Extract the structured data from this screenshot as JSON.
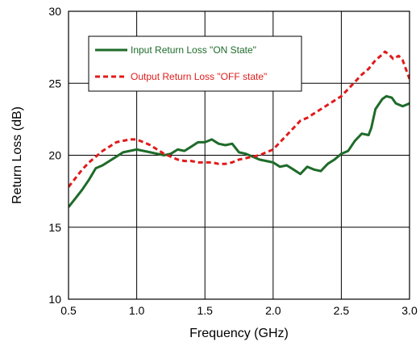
{
  "chart_data": {
    "type": "line",
    "title": "",
    "xlabel": "Frequency (GHz)",
    "ylabel": "Return Loss (dB)",
    "xlim": [
      0.5,
      3.0
    ],
    "ylim": [
      10,
      30
    ],
    "xticks": [
      "0.5",
      "1.0",
      "1.5",
      "2.0",
      "2.5",
      "3.0"
    ],
    "yticks": [
      "10",
      "15",
      "20",
      "25",
      "30"
    ],
    "grid": true,
    "legend": "top-left, inside plot, boxed",
    "series": [
      {
        "name": "Input Return Loss \"ON State\"",
        "color": "#1e6b2a",
        "style": "solid",
        "x": [
          0.5,
          0.55,
          0.6,
          0.65,
          0.7,
          0.75,
          0.8,
          0.85,
          0.9,
          0.95,
          1.0,
          1.05,
          1.1,
          1.15,
          1.2,
          1.25,
          1.3,
          1.35,
          1.4,
          1.45,
          1.5,
          1.55,
          1.6,
          1.65,
          1.7,
          1.75,
          1.8,
          1.85,
          1.9,
          1.95,
          2.0,
          2.05,
          2.1,
          2.15,
          2.2,
          2.25,
          2.3,
          2.35,
          2.4,
          2.45,
          2.5,
          2.55,
          2.6,
          2.65,
          2.7,
          2.72,
          2.75,
          2.8,
          2.83,
          2.87,
          2.9,
          2.95,
          3.0
        ],
        "y": [
          16.4,
          17.0,
          17.6,
          18.3,
          19.1,
          19.3,
          19.6,
          19.9,
          20.2,
          20.3,
          20.4,
          20.3,
          20.2,
          20.1,
          20.0,
          20.1,
          20.4,
          20.3,
          20.6,
          20.9,
          20.9,
          21.1,
          20.8,
          20.7,
          20.8,
          20.2,
          20.1,
          19.9,
          19.7,
          19.6,
          19.5,
          19.2,
          19.3,
          19.0,
          18.7,
          19.2,
          19.0,
          18.9,
          19.4,
          19.7,
          20.1,
          20.3,
          21.0,
          21.5,
          21.4,
          21.9,
          23.2,
          23.9,
          24.1,
          24.0,
          23.6,
          23.4,
          23.6
        ]
      },
      {
        "name": "Output Return Loss \"OFF state\"",
        "color": "#e01b1b",
        "style": "dashed",
        "x": [
          0.5,
          0.55,
          0.6,
          0.65,
          0.7,
          0.75,
          0.8,
          0.85,
          0.9,
          0.95,
          1.0,
          1.05,
          1.1,
          1.15,
          1.2,
          1.25,
          1.3,
          1.35,
          1.4,
          1.45,
          1.5,
          1.55,
          1.6,
          1.65,
          1.7,
          1.75,
          1.8,
          1.85,
          1.9,
          1.95,
          2.0,
          2.05,
          2.1,
          2.15,
          2.2,
          2.25,
          2.3,
          2.35,
          2.4,
          2.45,
          2.5,
          2.55,
          2.6,
          2.65,
          2.7,
          2.75,
          2.8,
          2.82,
          2.85,
          2.88,
          2.92,
          2.95,
          3.0
        ],
        "y": [
          17.8,
          18.4,
          19.0,
          19.5,
          19.9,
          20.3,
          20.6,
          20.9,
          21.0,
          21.1,
          21.1,
          20.9,
          20.7,
          20.4,
          20.1,
          19.9,
          19.7,
          19.6,
          19.6,
          19.5,
          19.5,
          19.5,
          19.4,
          19.4,
          19.5,
          19.7,
          19.8,
          19.9,
          20.0,
          20.2,
          20.4,
          20.9,
          21.4,
          21.9,
          22.4,
          22.6,
          22.9,
          23.2,
          23.5,
          23.8,
          24.1,
          24.6,
          25.1,
          25.6,
          26.0,
          26.6,
          27.0,
          27.2,
          27.0,
          26.7,
          26.9,
          26.6,
          25.3
        ]
      }
    ]
  }
}
